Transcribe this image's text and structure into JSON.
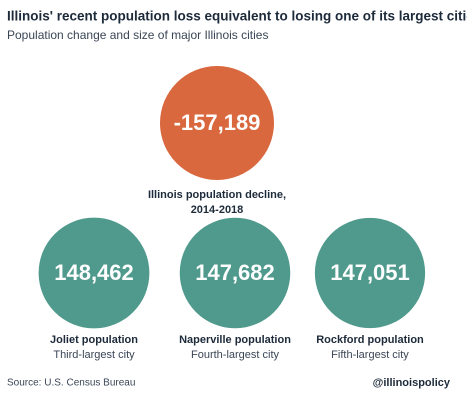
{
  "chart_data": {
    "type": "circles",
    "title": "Illinois' recent population loss equivalent to losing one of its largest cities",
    "subtitle": "Population change and size of major Illinois cities",
    "categories": [
      "Illinois population decline,",
      "Joliet population",
      "Naperville population",
      "Rockford population"
    ],
    "descriptions": [
      "2014-2018",
      "Third-largest city",
      "Fourth-largest city",
      "Fifth-largest city"
    ],
    "values": [
      -157189,
      148462,
      147682,
      147051
    ],
    "value_labels": [
      "-157,189",
      "148,462",
      "147,682",
      "147,051"
    ],
    "colors": [
      "#d9683f",
      "#4f9a8d",
      "#4f9a8d",
      "#4f9a8d"
    ],
    "source": "Source: U.S. Census Bureau",
    "credit": "@illinoispolicy"
  }
}
